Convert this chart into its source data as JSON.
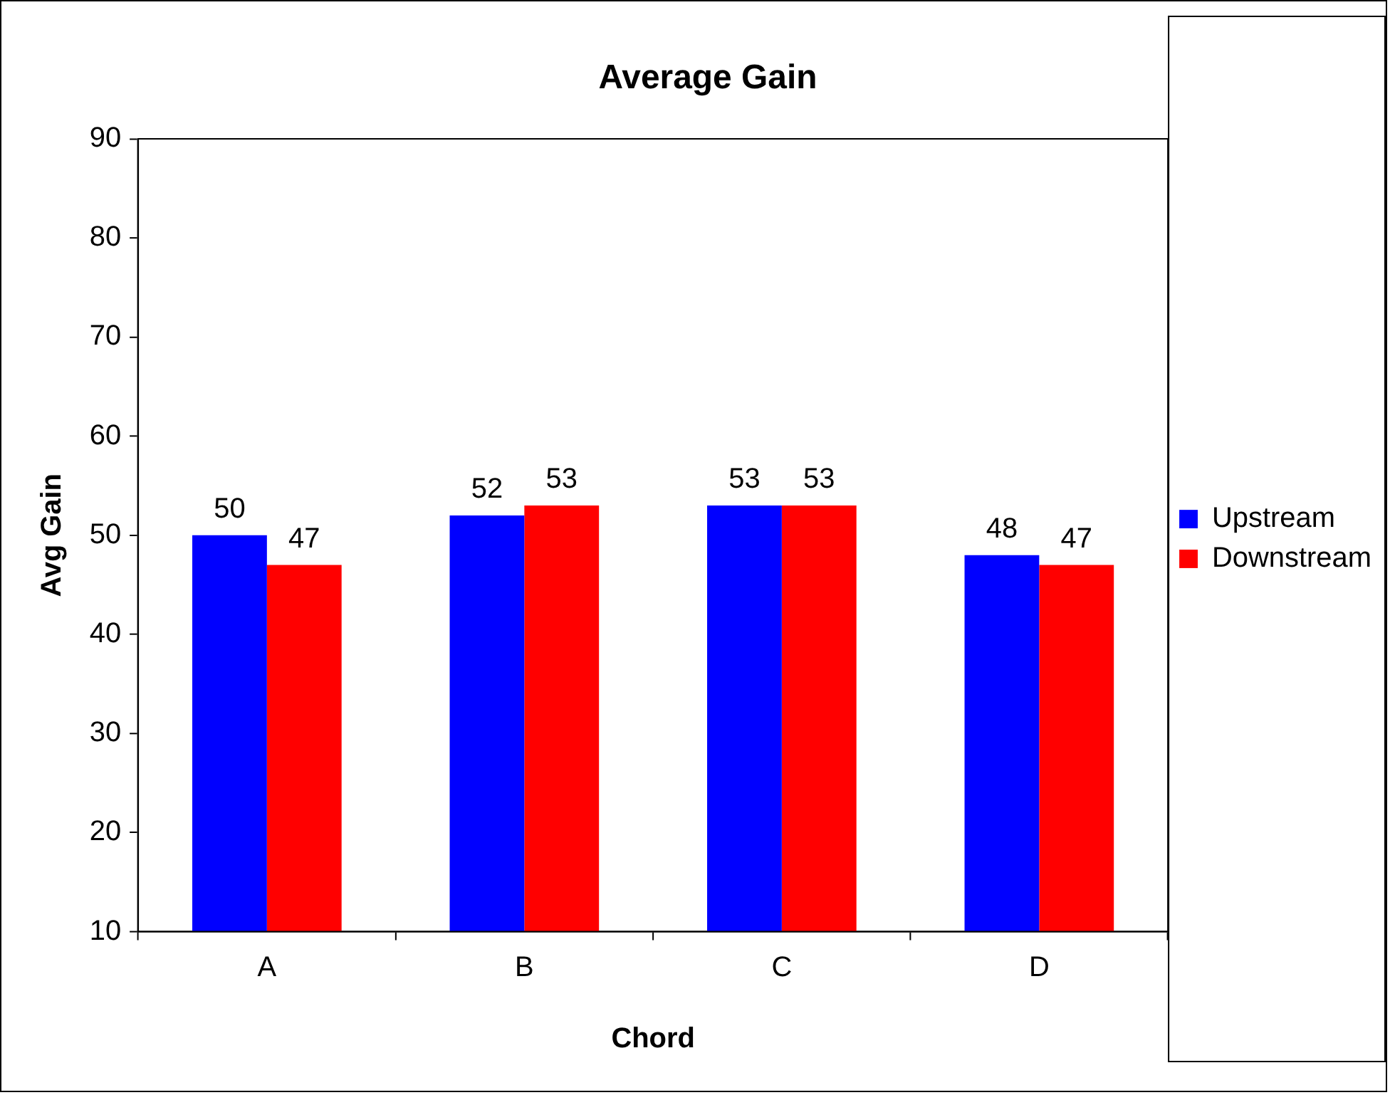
{
  "chart_data": {
    "type": "bar",
    "title": "Average Gain",
    "xlabel": "Chord",
    "ylabel": "Avg Gain",
    "categories": [
      "A",
      "B",
      "C",
      "D"
    ],
    "series": [
      {
        "name": "Upstream",
        "color": "#0000ff",
        "values": [
          50,
          52,
          53,
          48
        ]
      },
      {
        "name": "Downstream",
        "color": "#ff0000",
        "values": [
          47,
          53,
          53,
          47
        ]
      }
    ],
    "ylim": [
      10,
      90
    ],
    "yticks": [
      10,
      20,
      30,
      40,
      50,
      60,
      70,
      80,
      90
    ],
    "legend": "right",
    "data_labels": true
  }
}
